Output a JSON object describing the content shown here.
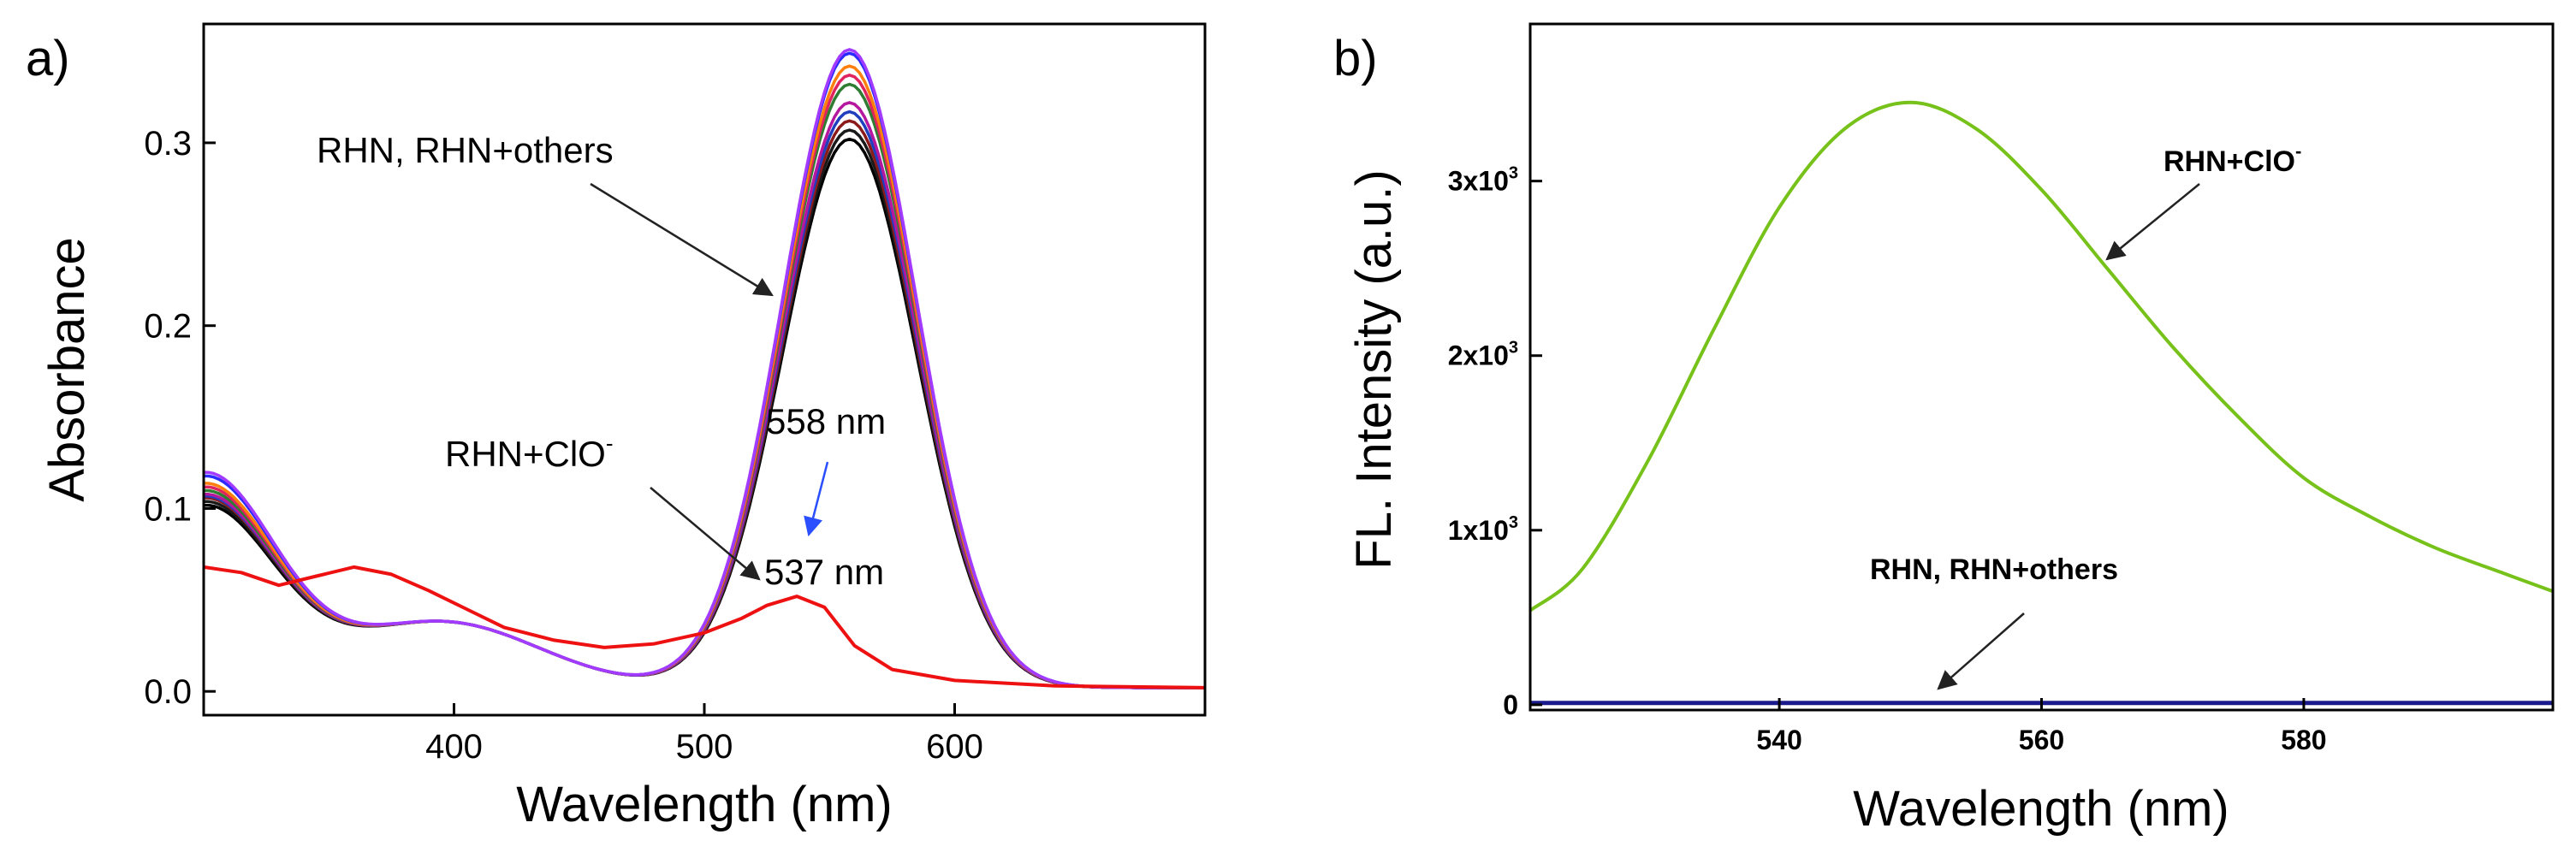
{
  "chart_data": [
    {
      "panel": "a)",
      "type": "line",
      "title": "",
      "xlabel": "Wavelength (nm)",
      "ylabel": "Absorbance",
      "xlim": [
        300,
        700
      ],
      "ylim": [
        -0.013,
        0.365
      ],
      "x_ticks": [
        400,
        500,
        600
      ],
      "x_tick_labels": [
        "400",
        "500",
        "600"
      ],
      "y_ticks": [
        0.0,
        0.1,
        0.2,
        0.3
      ],
      "y_tick_labels": [
        "0.0",
        "0.1",
        "0.2",
        "0.3"
      ],
      "grid": false,
      "series": [
        {
          "name": "RHN+others 1",
          "color": "#000000",
          "peak": 0.3,
          "base": 0.098
        },
        {
          "name": "RHN+others 2",
          "color": "#1a1a1a",
          "peak": 0.305,
          "base": 0.1
        },
        {
          "name": "RHN+others 3",
          "color": "#8b1a1a",
          "peak": 0.31,
          "base": 0.102
        },
        {
          "name": "RHN+others 4",
          "color": "#1f3fbf",
          "peak": 0.315,
          "base": 0.103
        },
        {
          "name": "RHN+others 5",
          "color": "#b5179e",
          "peak": 0.32,
          "base": 0.104
        },
        {
          "name": "RHN+others 6",
          "color": "#2e7d32",
          "peak": 0.33,
          "base": 0.106
        },
        {
          "name": "RHN+others 7",
          "color": "#e0245e",
          "peak": 0.335,
          "base": 0.108
        },
        {
          "name": "RHN+others 8",
          "color": "#ff7f0e",
          "peak": 0.34,
          "base": 0.11
        },
        {
          "name": "RHN 1",
          "color": "#2b2bff",
          "peak": 0.347,
          "base": 0.114
        },
        {
          "name": "RHN 2",
          "color": "#a23bff",
          "peak": 0.349,
          "base": 0.116
        },
        {
          "name": "RHN+ClO⁻",
          "color": "#ee1111",
          "x": [
            300,
            315,
            330,
            345,
            360,
            375,
            390,
            405,
            420,
            440,
            460,
            480,
            500,
            515,
            525,
            537,
            548,
            560,
            575,
            600,
            640,
            700
          ],
          "y": [
            0.068,
            0.065,
            0.058,
            0.063,
            0.068,
            0.064,
            0.055,
            0.045,
            0.035,
            0.028,
            0.024,
            0.026,
            0.032,
            0.04,
            0.047,
            0.052,
            0.046,
            0.025,
            0.012,
            0.006,
            0.003,
            0.002
          ]
        }
      ],
      "annotations": [
        {
          "text": "RHN, RHN+others"
        },
        {
          "text": "RHN+ClO",
          "superscript": "-"
        },
        {
          "text": "558 nm"
        },
        {
          "text": "537 nm"
        }
      ]
    },
    {
      "panel": "b)",
      "type": "line",
      "title": "",
      "xlabel": "Wavelength (nm)",
      "ylabel": "FL. Intensity (a.u.)",
      "xlim": [
        521,
        599
      ],
      "ylim": [
        -30,
        3900
      ],
      "x_ticks": [
        540,
        560,
        580
      ],
      "x_tick_labels": [
        "540",
        "560",
        "580"
      ],
      "y_ticks": [
        0,
        1000,
        2000,
        3000
      ],
      "y_tick_labels": [
        {
          "base": "0",
          "exp": ""
        },
        {
          "base": "1x10",
          "exp": "3"
        },
        {
          "base": "2x10",
          "exp": "3"
        },
        {
          "base": "3x10",
          "exp": "3"
        }
      ],
      "grid": false,
      "series": [
        {
          "name": "RHN+ClO⁻",
          "color": "#77c21a",
          "x": [
            521,
            525,
            530,
            535,
            540,
            545,
            550,
            555,
            560,
            565,
            570,
            575,
            580,
            585,
            590,
            595,
            599
          ],
          "y": [
            540,
            780,
            1400,
            2150,
            2850,
            3300,
            3450,
            3300,
            2950,
            2500,
            2050,
            1650,
            1300,
            1080,
            900,
            760,
            650
          ]
        },
        {
          "name": "RHN, RHN+others",
          "color": "#1a1a8c",
          "x": [
            521,
            599
          ],
          "y": [
            10,
            10
          ]
        }
      ],
      "annotations": [
        {
          "text": "RHN+ClO",
          "superscript": "-"
        },
        {
          "text": "RHN, RHN+others"
        }
      ]
    }
  ]
}
